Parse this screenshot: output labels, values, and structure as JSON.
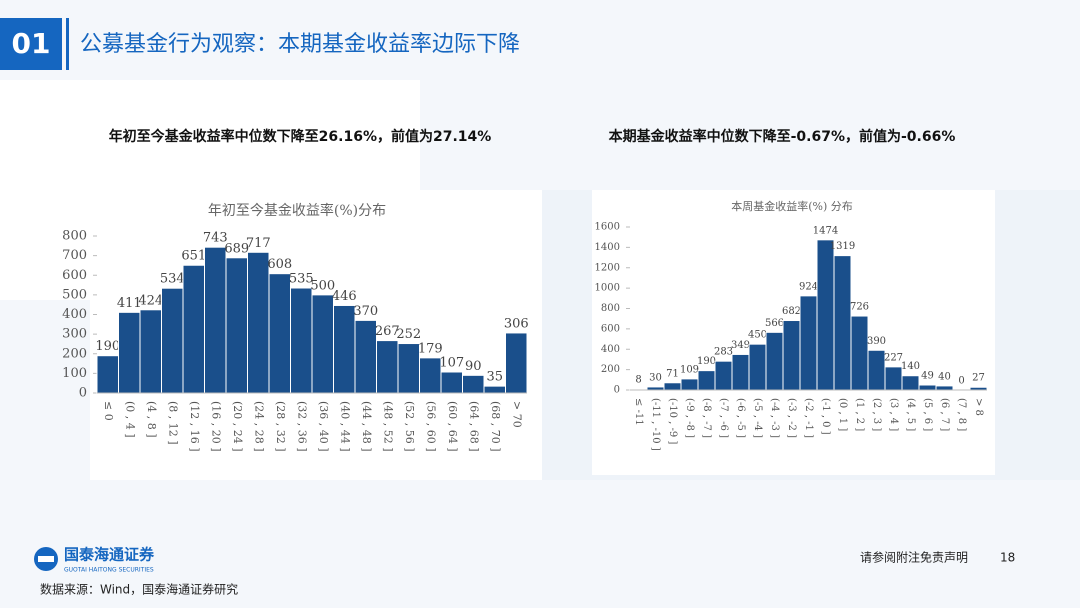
{
  "header": {
    "number": "01",
    "title": "公募基金行为观察：本期基金收益率边际下降"
  },
  "chart_data": [
    {
      "type": "bar",
      "subtitle": "年初至今基金收益率中位数下降至26.16%，前值为27.14%",
      "title": "年初至今基金收益率(%)分布",
      "categories": [
        "≤ 0",
        "(0 , 4 ]",
        "(4 , 8 ]",
        "(8 , 12 ]",
        "(12 , 16 ]",
        "(16 , 20 ]",
        "(20 , 24 ]",
        "(24 , 28 ]",
        "(28 , 32 ]",
        "(32 , 36 ]",
        "(36 , 40 ]",
        "(40 , 44 ]",
        "(44 , 48 ]",
        "(48 , 52 ]",
        "(52 , 56 ]",
        "(56 , 60 ]",
        "(60 , 64 ]",
        "(64 , 68 ]",
        "(68 , 70 ]",
        "> 70"
      ],
      "values": [
        190,
        411,
        424,
        534,
        651,
        743,
        689,
        717,
        608,
        535,
        500,
        446,
        370,
        267,
        252,
        179,
        107,
        90,
        35,
        306
      ],
      "color": "#1a4f8b",
      "ylim": [
        0,
        800
      ],
      "yticks": [
        0,
        100,
        200,
        300,
        400,
        500,
        600,
        700,
        800
      ]
    },
    {
      "type": "bar",
      "subtitle": "本期基金收益率中位数下降至-0.67%，前值为-0.66%",
      "title": "本周基金收益率(%) 分布",
      "categories": [
        "≤ -11",
        "(-11 , -10 ]",
        "(-10 , -9 ]",
        "(-9 , -8 ]",
        "(-8 , -7 ]",
        "(-7 , -6 ]",
        "(-6 , -5 ]",
        "(-5 , -4 ]",
        "(-4 , -3 ]",
        "(-3 , -2 ]",
        "(-2 , -1 ]",
        "(-1 , 0 ]",
        "(0 , 1 ]",
        "(1 , 2 ]",
        "(2 , 3 ]",
        "(3 , 4 ]",
        "(4 , 5 ]",
        "(5 , 6 ]",
        "(6 , 7 ]",
        "(7 , 8 ]",
        "> 8"
      ],
      "values": [
        8,
        30,
        71,
        109,
        190,
        283,
        349,
        450,
        566,
        682,
        924,
        1474,
        1319,
        726,
        390,
        227,
        140,
        49,
        40,
        0,
        27
      ],
      "color": "#1a4f8b",
      "ylim": [
        0,
        1600
      ],
      "yticks": [
        0,
        200,
        400,
        600,
        800,
        1000,
        1200,
        1400,
        1600
      ]
    }
  ],
  "footer": {
    "logo": "国泰海通证券",
    "logo_en": "GUOTAI HAITONG SECURITIES",
    "source": "数据来源：Wind，国泰海通证券研究",
    "disclaimer": "请参阅附注免责声明",
    "page": "18"
  }
}
